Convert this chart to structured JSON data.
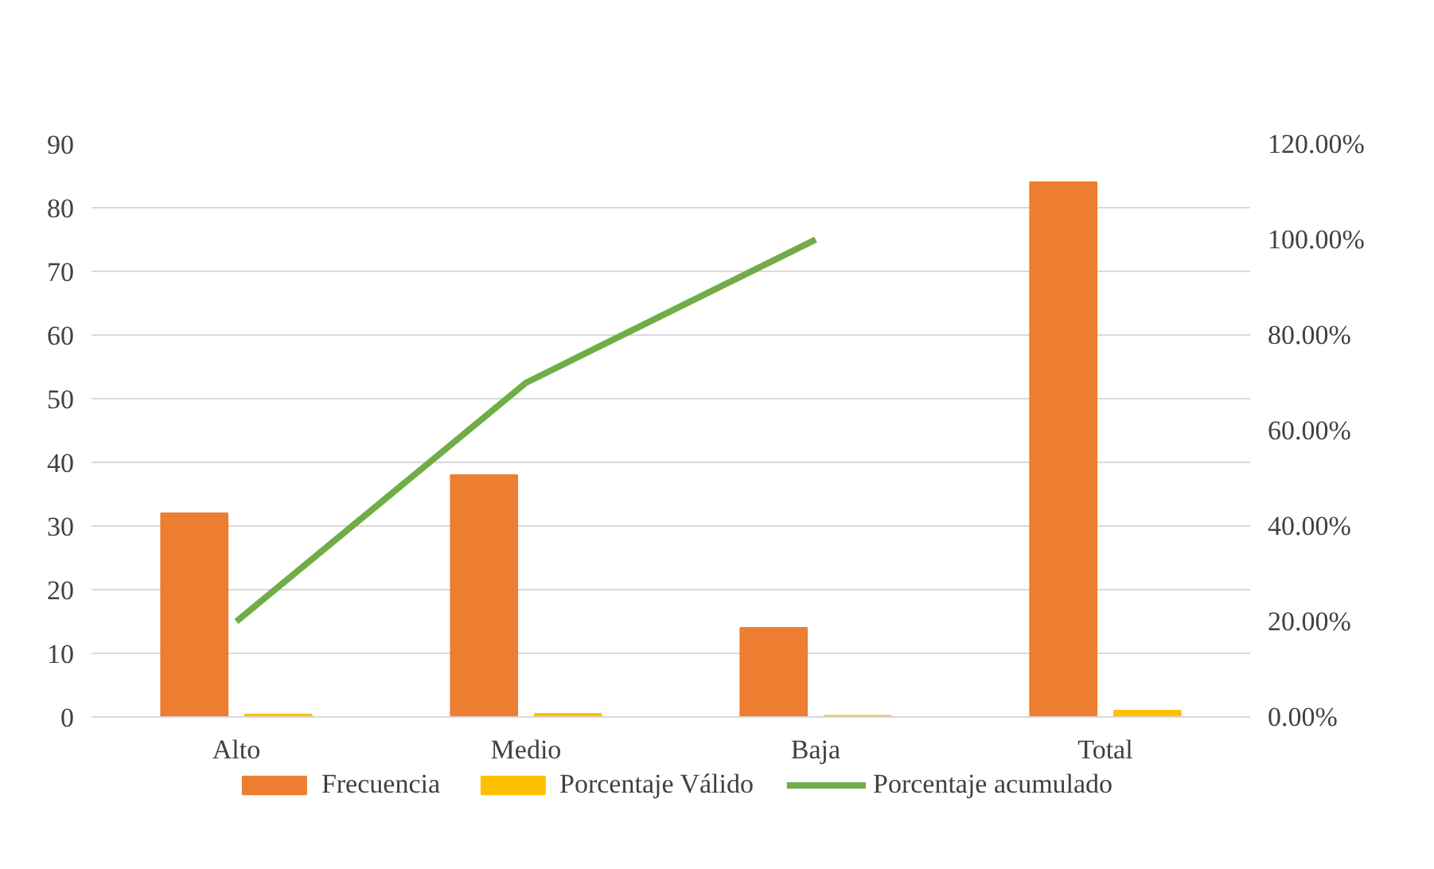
{
  "chart_data": {
    "type": "bar",
    "categories": [
      "Alto",
      "Medio",
      "Baja",
      "Total"
    ],
    "series": [
      {
        "name": "Frecuencia",
        "color": "#ed7d31",
        "values": [
          32,
          38,
          14,
          84
        ]
      },
      {
        "name": "Porcentaje Válido",
        "color": "#ffc000",
        "values": [
          0.4,
          0.5,
          0.2,
          1
        ]
      },
      {
        "name": "Porcentaje acumulado",
        "type": "line",
        "axis": "y2",
        "color": "#70ad47",
        "values": [
          20,
          70,
          100,
          null
        ]
      }
    ],
    "ylim": [
      0,
      90
    ],
    "yticks": [
      0,
      10,
      20,
      30,
      40,
      50,
      60,
      70,
      80,
      90
    ],
    "y2lim": [
      0,
      120
    ],
    "y2ticks": [
      {
        "value": 0,
        "label": "0.00%"
      },
      {
        "value": 20,
        "label": "20.00%"
      },
      {
        "value": 40,
        "label": "40.00%"
      },
      {
        "value": 60,
        "label": "60.00%"
      },
      {
        "value": 80,
        "label": "80.00%"
      },
      {
        "value": 100,
        "label": "100.00%"
      },
      {
        "value": 120,
        "label": "120.00%"
      }
    ],
    "grid": "y",
    "legend": "bottom",
    "marker": "none"
  }
}
